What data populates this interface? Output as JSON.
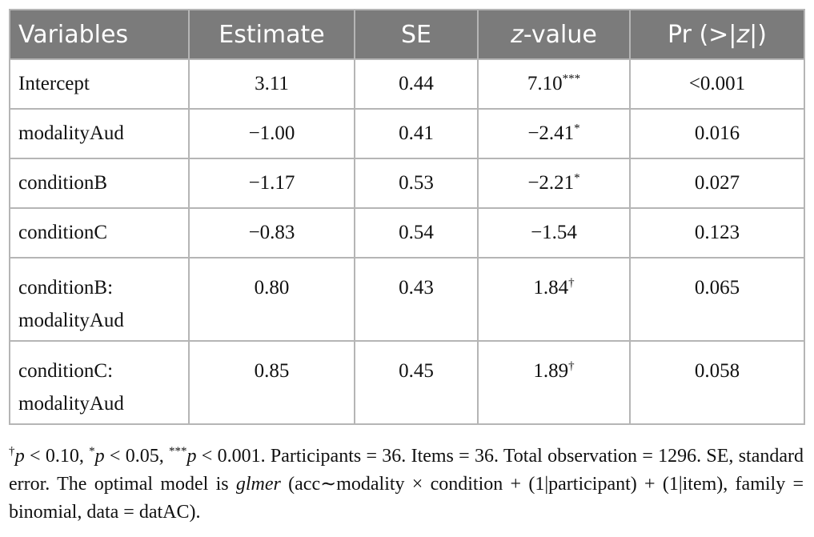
{
  "table": {
    "headers": {
      "variables": "Variables",
      "estimate": "Estimate",
      "se": "SE",
      "z_italic": "z",
      "z_rest": "-value",
      "pr_pre": "Pr (>|",
      "pr_z": "z",
      "pr_post": "|)"
    },
    "rows": [
      {
        "variable": "Intercept",
        "estimate": "3.11",
        "se": "0.44",
        "z": "7.10",
        "z_mark": "***",
        "pr": "<0.001"
      },
      {
        "variable": "modalityAud",
        "estimate": "−1.00",
        "se": "0.41",
        "z": "−2.41",
        "z_mark": "*",
        "pr": "0.016"
      },
      {
        "variable": "conditionB",
        "estimate": "−1.17",
        "se": "0.53",
        "z": "−2.21",
        "z_mark": "*",
        "pr": "0.027"
      },
      {
        "variable": "conditionC",
        "estimate": "−0.83",
        "se": "0.54",
        "z": "−1.54",
        "z_mark": "",
        "pr": "0.123"
      },
      {
        "variable_line1": "conditionB:",
        "variable_line2": "modalityAud",
        "estimate": "0.80",
        "se": "0.43",
        "z": "1.84",
        "z_mark": "†",
        "pr": "0.065"
      },
      {
        "variable_line1": "conditionC:",
        "variable_line2": "modalityAud",
        "estimate": "0.85",
        "se": "0.45",
        "z": "1.89",
        "z_mark": "†",
        "pr": "0.058"
      }
    ]
  },
  "footnote": {
    "s1_mark": "†",
    "s1_p": "p",
    "s1_text": " < 0.10, ",
    "s2_mark": "*",
    "s2_p": "p",
    "s2_text": " < 0.05, ",
    "s3_mark": "***",
    "s3_p": "p",
    "s3_text": " < 0.001. Participants = 36. Items = 36. Total observation = 1296. SE, standard error. The optimal model is ",
    "model_name": "glmer",
    "model_formula": " (acc∼modality × condition + (1|participant) + (1|item), family = binomial, data = datAC)."
  },
  "colors": {
    "header_bg": "#7b7b7b",
    "header_text": "#ffffff",
    "border": "#b5b5b5"
  }
}
